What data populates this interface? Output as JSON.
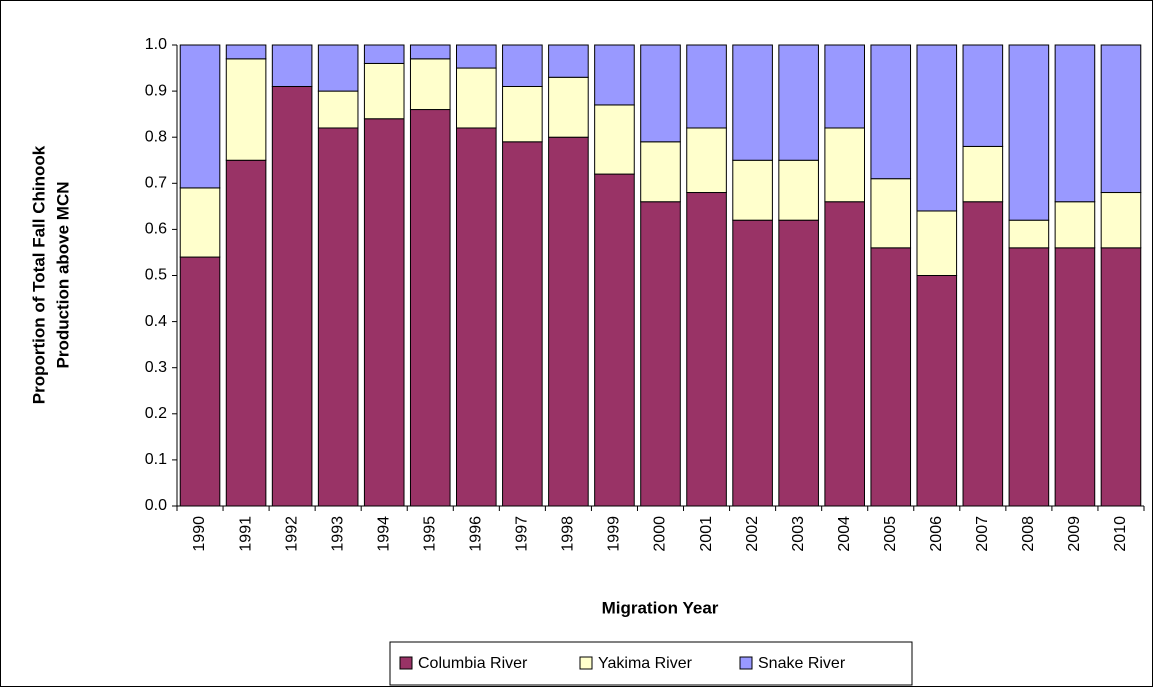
{
  "chart_data": {
    "type": "stacked-bar",
    "y_label": [
      "Proportion of Total Fall Chinook",
      "Production above MCN"
    ],
    "x_label": "Migration Year",
    "categories": [
      "1990",
      "1991",
      "1992",
      "1993",
      "1994",
      "1995",
      "1996",
      "1997",
      "1998",
      "1999",
      "2000",
      "2001",
      "2002",
      "2003",
      "2004",
      "2005",
      "2006",
      "2007",
      "2008",
      "2009",
      "2010"
    ],
    "series": [
      {
        "name": "Columbia River",
        "color": "#993366",
        "values": [
          0.54,
          0.75,
          0.91,
          0.82,
          0.84,
          0.86,
          0.82,
          0.79,
          0.8,
          0.72,
          0.66,
          0.68,
          0.62,
          0.62,
          0.66,
          0.56,
          0.5,
          0.66,
          0.56,
          0.56,
          0.56
        ]
      },
      {
        "name": "Yakima River",
        "color": "#ffffcc",
        "values": [
          0.15,
          0.22,
          0,
          0.08,
          0.12,
          0.11,
          0.13,
          0.12,
          0.13,
          0.15,
          0.13,
          0.14,
          0.13,
          0.13,
          0.16,
          0.15,
          0.14,
          0.12,
          0.06,
          0.1,
          0.12
        ]
      },
      {
        "name": "Snake River",
        "color": "#9999ff",
        "values": [
          0.31,
          0.03,
          0.09,
          0.1,
          0.04,
          0.03,
          0.05,
          0.09,
          0.07,
          0.13,
          0.21,
          0.18,
          0.25,
          0.25,
          0.18,
          0.29,
          0.36,
          0.22,
          0.38,
          0.34,
          0.32
        ]
      }
    ],
    "ylim": [
      0,
      1
    ],
    "yticks": [
      {
        "value": 0,
        "label": "0.0"
      },
      0.1,
      0.2,
      0.3,
      0.4,
      0.5,
      0.6,
      0.7,
      0.8,
      0.9,
      {
        "value": 1,
        "label": "1.0"
      }
    ],
    "legend": "bottom"
  }
}
